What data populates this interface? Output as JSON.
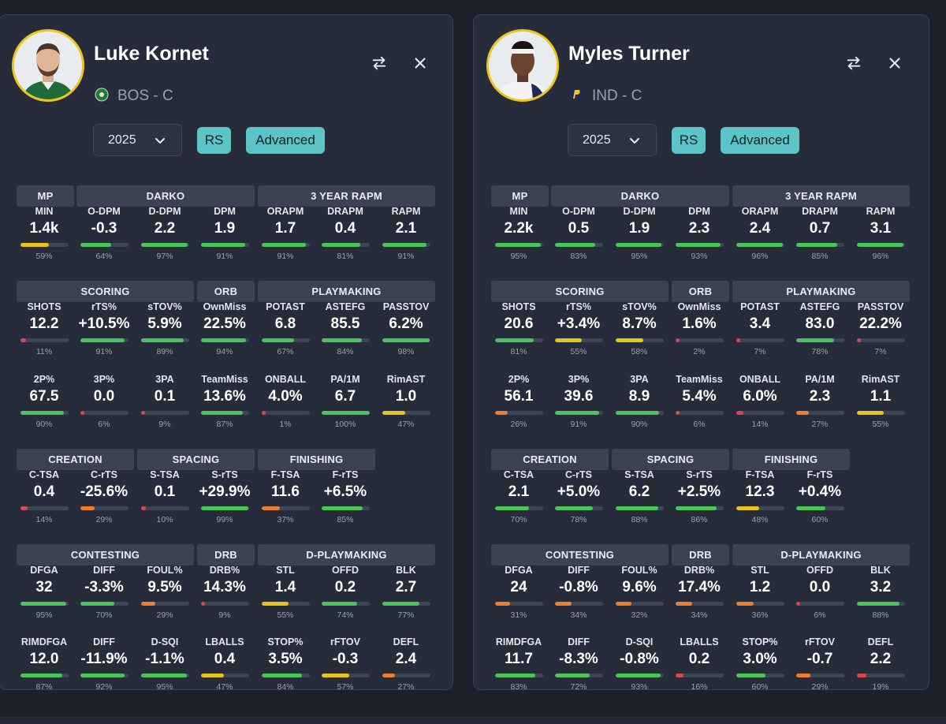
{
  "colors": {
    "green": "#4cc45a",
    "yellow": "#e8c21d",
    "orange": "#ee7d2c",
    "red": "#e0464e",
    "track": "#3e4554",
    "accent": "#5cc3c6",
    "ring": "#f0c419"
  },
  "players": [
    {
      "name": "Luke Kornet",
      "team_line": "BOS - C",
      "team_logo": "celtics-logo-icon",
      "year": "2025",
      "rs_label": "RS",
      "advanced_label": "Advanced",
      "groups": [
        "MP",
        "DARKO",
        "3 YEAR RAPM",
        "SCORING",
        "ORB",
        "PLAYMAKING",
        "CREATION",
        "SPACING",
        "FINISHING",
        "CONTESTING",
        "DRB",
        "D-PLAYMAKING"
      ],
      "rows": [
        [
          {
            "label": "MIN",
            "value": "1.4k",
            "pct": "59%",
            "p": 59,
            "color": "yellow"
          },
          {
            "label": "O-DPM",
            "value": "-0.3",
            "pct": "64%",
            "p": 64,
            "color": "green"
          },
          {
            "label": "D-DPM",
            "value": "2.2",
            "pct": "97%",
            "p": 97,
            "color": "green"
          },
          {
            "label": "DPM",
            "value": "1.9",
            "pct": "91%",
            "p": 91,
            "color": "green"
          },
          {
            "label": "ORAPM",
            "value": "1.7",
            "pct": "91%",
            "p": 91,
            "color": "green"
          },
          {
            "label": "DRAPM",
            "value": "0.4",
            "pct": "81%",
            "p": 81,
            "color": "green"
          },
          {
            "label": "RAPM",
            "value": "2.1",
            "pct": "91%",
            "p": 91,
            "color": "green"
          }
        ],
        [
          {
            "label": "SHOTS",
            "value": "12.2",
            "pct": "11%",
            "p": 11,
            "color": "red"
          },
          {
            "label": "rTS%",
            "value": "+10.5%",
            "pct": "91%",
            "p": 91,
            "color": "green"
          },
          {
            "label": "sTOV%",
            "value": "5.9%",
            "pct": "89%",
            "p": 89,
            "color": "green"
          },
          {
            "label": "OwnMiss",
            "value": "22.5%",
            "pct": "94%",
            "p": 94,
            "color": "green"
          },
          {
            "label": "POTAST",
            "value": "6.8",
            "pct": "67%",
            "p": 67,
            "color": "green"
          },
          {
            "label": "ASTEFG",
            "value": "85.5",
            "pct": "84%",
            "p": 84,
            "color": "green"
          },
          {
            "label": "PASSTOV",
            "value": "6.2%",
            "pct": "98%",
            "p": 98,
            "color": "green"
          }
        ],
        [
          {
            "label": "2P%",
            "value": "67.5",
            "pct": "90%",
            "p": 90,
            "color": "green"
          },
          {
            "label": "3P%",
            "value": "0.0",
            "pct": "6%",
            "p": 6,
            "color": "red"
          },
          {
            "label": "3PA",
            "value": "0.1",
            "pct": "9%",
            "p": 9,
            "color": "red"
          },
          {
            "label": "TeamMiss",
            "value": "13.6%",
            "pct": "87%",
            "p": 87,
            "color": "green"
          },
          {
            "label": "ONBALL",
            "value": "4.0%",
            "pct": "1%",
            "p": 1,
            "color": "red"
          },
          {
            "label": "PA/1M",
            "value": "6.7",
            "pct": "100%",
            "p": 100,
            "color": "green"
          },
          {
            "label": "RimAST",
            "value": "1.0",
            "pct": "47%",
            "p": 47,
            "color": "yellow"
          }
        ],
        [
          {
            "label": "C-TSA",
            "value": "0.4",
            "pct": "14%",
            "p": 14,
            "color": "red"
          },
          {
            "label": "C-rTS",
            "value": "-25.6%",
            "pct": "29%",
            "p": 29,
            "color": "orange"
          },
          {
            "label": "S-TSA",
            "value": "0.1",
            "pct": "10%",
            "p": 10,
            "color": "red"
          },
          {
            "label": "S-rTS",
            "value": "+29.9%",
            "pct": "99%",
            "p": 99,
            "color": "green"
          },
          {
            "label": "F-TSA",
            "value": "11.6",
            "pct": "37%",
            "p": 37,
            "color": "orange"
          },
          {
            "label": "F-rTS",
            "value": "+6.5%",
            "pct": "85%",
            "p": 85,
            "color": "green"
          }
        ],
        [
          {
            "label": "DFGA",
            "value": "32",
            "pct": "95%",
            "p": 95,
            "color": "green"
          },
          {
            "label": "DIFF",
            "value": "-3.3%",
            "pct": "70%",
            "p": 70,
            "color": "green"
          },
          {
            "label": "FOUL%",
            "value": "9.5%",
            "pct": "29%",
            "p": 29,
            "color": "orange"
          },
          {
            "label": "DRB%",
            "value": "14.3%",
            "pct": "9%",
            "p": 9,
            "color": "red"
          },
          {
            "label": "STL",
            "value": "1.4",
            "pct": "55%",
            "p": 55,
            "color": "yellow"
          },
          {
            "label": "OFFD",
            "value": "0.2",
            "pct": "74%",
            "p": 74,
            "color": "green"
          },
          {
            "label": "BLK",
            "value": "2.7",
            "pct": "77%",
            "p": 77,
            "color": "green"
          }
        ],
        [
          {
            "label": "RIMDFGA",
            "value": "12.0",
            "pct": "87%",
            "p": 87,
            "color": "green"
          },
          {
            "label": "DIFF",
            "value": "-11.9%",
            "pct": "92%",
            "p": 92,
            "color": "green"
          },
          {
            "label": "D-SQI",
            "value": "-1.1%",
            "pct": "95%",
            "p": 95,
            "color": "green"
          },
          {
            "label": "LBALLS",
            "value": "0.4",
            "pct": "47%",
            "p": 47,
            "color": "yellow"
          },
          {
            "label": "STOP%",
            "value": "3.5%",
            "pct": "84%",
            "p": 84,
            "color": "green"
          },
          {
            "label": "rFTOV",
            "value": "-0.3",
            "pct": "57%",
            "p": 57,
            "color": "yellow"
          },
          {
            "label": "DEFL",
            "value": "2.4",
            "pct": "27%",
            "p": 27,
            "color": "orange"
          }
        ]
      ]
    },
    {
      "name": "Myles Turner",
      "team_line": "IND - C",
      "team_logo": "pacers-logo-icon",
      "year": "2025",
      "rs_label": "RS",
      "advanced_label": "Advanced",
      "groups": [
        "MP",
        "DARKO",
        "3 YEAR RAPM",
        "SCORING",
        "ORB",
        "PLAYMAKING",
        "CREATION",
        "SPACING",
        "FINISHING",
        "CONTESTING",
        "DRB",
        "D-PLAYMAKING"
      ],
      "rows": [
        [
          {
            "label": "MIN",
            "value": "2.2k",
            "pct": "95%",
            "p": 95,
            "color": "green"
          },
          {
            "label": "O-DPM",
            "value": "0.5",
            "pct": "83%",
            "p": 83,
            "color": "green"
          },
          {
            "label": "D-DPM",
            "value": "1.9",
            "pct": "95%",
            "p": 95,
            "color": "green"
          },
          {
            "label": "DPM",
            "value": "2.3",
            "pct": "93%",
            "p": 93,
            "color": "green"
          },
          {
            "label": "ORAPM",
            "value": "2.4",
            "pct": "96%",
            "p": 96,
            "color": "green"
          },
          {
            "label": "DRAPM",
            "value": "0.7",
            "pct": "85%",
            "p": 85,
            "color": "green"
          },
          {
            "label": "RAPM",
            "value": "3.1",
            "pct": "96%",
            "p": 96,
            "color": "green"
          }
        ],
        [
          {
            "label": "SHOTS",
            "value": "20.6",
            "pct": "81%",
            "p": 81,
            "color": "green"
          },
          {
            "label": "rTS%",
            "value": "+3.4%",
            "pct": "55%",
            "p": 55,
            "color": "yellow"
          },
          {
            "label": "sTOV%",
            "value": "8.7%",
            "pct": "58%",
            "p": 58,
            "color": "yellow"
          },
          {
            "label": "OwnMiss",
            "value": "1.6%",
            "pct": "2%",
            "p": 2,
            "color": "red"
          },
          {
            "label": "POTAST",
            "value": "3.4",
            "pct": "7%",
            "p": 7,
            "color": "red"
          },
          {
            "label": "ASTEFG",
            "value": "83.0",
            "pct": "78%",
            "p": 78,
            "color": "green"
          },
          {
            "label": "PASSTOV",
            "value": "22.2%",
            "pct": "7%",
            "p": 7,
            "color": "red"
          }
        ],
        [
          {
            "label": "2P%",
            "value": "56.1",
            "pct": "26%",
            "p": 26,
            "color": "orange"
          },
          {
            "label": "3P%",
            "value": "39.6",
            "pct": "91%",
            "p": 91,
            "color": "green"
          },
          {
            "label": "3PA",
            "value": "8.9",
            "pct": "90%",
            "p": 90,
            "color": "green"
          },
          {
            "label": "TeamMiss",
            "value": "5.4%",
            "pct": "6%",
            "p": 6,
            "color": "red"
          },
          {
            "label": "ONBALL",
            "value": "6.0%",
            "pct": "14%",
            "p": 14,
            "color": "red"
          },
          {
            "label": "PA/1M",
            "value": "2.3",
            "pct": "27%",
            "p": 27,
            "color": "orange"
          },
          {
            "label": "RimAST",
            "value": "1.1",
            "pct": "55%",
            "p": 55,
            "color": "yellow"
          }
        ],
        [
          {
            "label": "C-TSA",
            "value": "2.1",
            "pct": "70%",
            "p": 70,
            "color": "green"
          },
          {
            "label": "C-rTS",
            "value": "+5.0%",
            "pct": "78%",
            "p": 78,
            "color": "green"
          },
          {
            "label": "S-TSA",
            "value": "6.2",
            "pct": "88%",
            "p": 88,
            "color": "green"
          },
          {
            "label": "S-rTS",
            "value": "+2.5%",
            "pct": "86%",
            "p": 86,
            "color": "green"
          },
          {
            "label": "F-TSA",
            "value": "12.3",
            "pct": "48%",
            "p": 48,
            "color": "yellow"
          },
          {
            "label": "F-rTS",
            "value": "+0.4%",
            "pct": "60%",
            "p": 60,
            "color": "green"
          }
        ],
        [
          {
            "label": "DFGA",
            "value": "24",
            "pct": "31%",
            "p": 31,
            "color": "orange"
          },
          {
            "label": "DIFF",
            "value": "-0.8%",
            "pct": "34%",
            "p": 34,
            "color": "orange"
          },
          {
            "label": "FOUL%",
            "value": "9.6%",
            "pct": "32%",
            "p": 32,
            "color": "orange"
          },
          {
            "label": "DRB%",
            "value": "17.4%",
            "pct": "34%",
            "p": 34,
            "color": "orange"
          },
          {
            "label": "STL",
            "value": "1.2",
            "pct": "36%",
            "p": 36,
            "color": "orange"
          },
          {
            "label": "OFFD",
            "value": "0.0",
            "pct": "6%",
            "p": 6,
            "color": "red"
          },
          {
            "label": "BLK",
            "value": "3.2",
            "pct": "88%",
            "p": 88,
            "color": "green"
          }
        ],
        [
          {
            "label": "RIMDFGA",
            "value": "11.7",
            "pct": "83%",
            "p": 83,
            "color": "green"
          },
          {
            "label": "DIFF",
            "value": "-8.3%",
            "pct": "72%",
            "p": 72,
            "color": "green"
          },
          {
            "label": "D-SQI",
            "value": "-0.8%",
            "pct": "93%",
            "p": 93,
            "color": "green"
          },
          {
            "label": "LBALLS",
            "value": "0.2",
            "pct": "16%",
            "p": 16,
            "color": "red"
          },
          {
            "label": "STOP%",
            "value": "3.0%",
            "pct": "60%",
            "p": 60,
            "color": "green"
          },
          {
            "label": "rFTOV",
            "value": "-0.7",
            "pct": "29%",
            "p": 29,
            "color": "orange"
          },
          {
            "label": "DEFL",
            "value": "2.2",
            "pct": "19%",
            "p": 19,
            "color": "red"
          }
        ]
      ]
    }
  ]
}
